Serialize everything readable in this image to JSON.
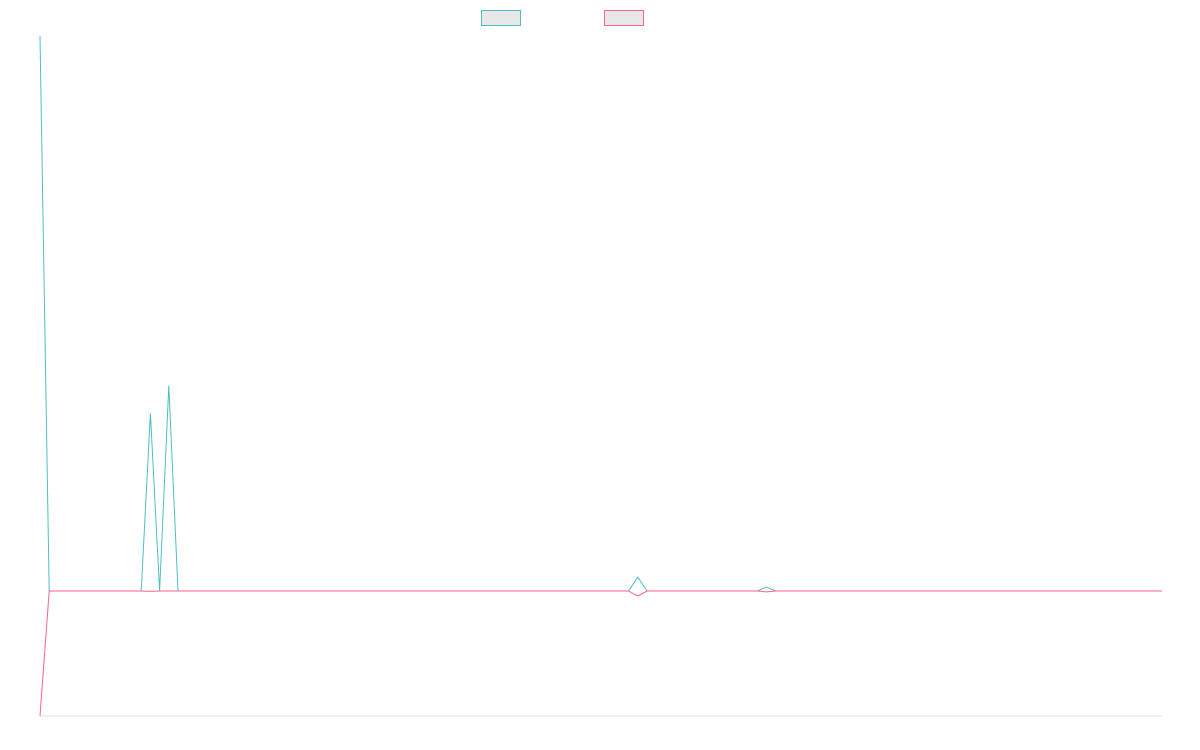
{
  "chart_data": {
    "type": "line",
    "title": "",
    "xlabel": "",
    "ylabel": "",
    "x": [
      0,
      1,
      11,
      12,
      13,
      14,
      15,
      64,
      65,
      66,
      78,
      79,
      80,
      122
    ],
    "ylim": [
      -1,
      0.2
    ],
    "grid": false,
    "legend_position": "top-center",
    "series": [
      {
        "name": "",
        "color": "#4bc0c0",
        "values": [
          1,
          0,
          0,
          0.32,
          0,
          0.37,
          0,
          0,
          0.025,
          0,
          0,
          0.007,
          0,
          0
        ]
      },
      {
        "name": "",
        "color": "#ff6384",
        "values": [
          -1,
          0,
          0,
          -0.003,
          0,
          0,
          0,
          0,
          -0.04,
          0,
          0,
          -0.007,
          0,
          0
        ]
      }
    ]
  }
}
